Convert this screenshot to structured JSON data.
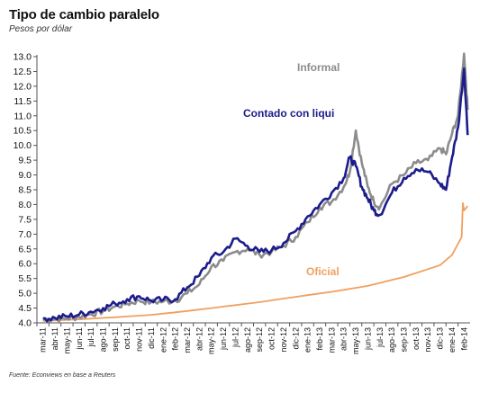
{
  "header": {
    "title": "Tipo de cambio paralelo",
    "subtitle": "Pesos por dólar"
  },
  "footer": {
    "source": "Fuente: Econviews en base a Reuters"
  },
  "colors": {
    "informal": "#8c8c8c",
    "contado": "#1c1c8c",
    "oficial": "#f0a060",
    "axis": "#555555",
    "grid": "#dddddd"
  },
  "chart_data": {
    "type": "line",
    "title": "Tipo de cambio paralelo",
    "subtitle": "Pesos por dólar",
    "xlabel": "",
    "ylabel": "",
    "ylim": [
      4.0,
      13.0
    ],
    "yticks": [
      "4.0",
      "4.5",
      "5.0",
      "5.5",
      "6.0",
      "6.5",
      "7.0",
      "7.5",
      "8.0",
      "8.5",
      "9.0",
      "9.5",
      "10.0",
      "10.5",
      "11.0",
      "11.5",
      "12.0",
      "12.5",
      "13.0"
    ],
    "categories": [
      "mar-11",
      "abr-11",
      "may-11",
      "jun-11",
      "jul-11",
      "ago-11",
      "sep-11",
      "oct-11",
      "nov-11",
      "dic-11",
      "ene-12",
      "feb-12",
      "mar-12",
      "abr-12",
      "may-12",
      "jun-12",
      "jul-12",
      "ago-12",
      "sep-12",
      "oct-12",
      "nov-12",
      "dic-12",
      "ene-13",
      "feb-13",
      "mar-13",
      "abr-13",
      "may-13",
      "jun-13",
      "jul-13",
      "ago-13",
      "sep-13",
      "oct-13",
      "nov-13",
      "dic-13",
      "ene-14",
      "feb-14"
    ],
    "grid": false,
    "annotations": [
      {
        "text": "Informal",
        "series": "Informal"
      },
      {
        "text": "Contado con liqui",
        "series": "Contado con liqui"
      },
      {
        "text": "Oficial",
        "series": "Oficial"
      }
    ],
    "series": [
      {
        "name": "Informal",
        "x": [
          0,
          1,
          2,
          3,
          4,
          5,
          6,
          7,
          8,
          9,
          10,
          11,
          12,
          13,
          14,
          15,
          16,
          17,
          18,
          19,
          20,
          21,
          22,
          23,
          24,
          25,
          25.5,
          26,
          26.5,
          27,
          27.5,
          28,
          29,
          30,
          31,
          32,
          33,
          33.5,
          34,
          34.5,
          35,
          35.3
        ],
        "values": [
          4.12,
          4.13,
          4.15,
          4.2,
          4.3,
          4.4,
          4.55,
          4.65,
          4.75,
          4.7,
          4.72,
          4.75,
          5.0,
          5.3,
          5.9,
          6.1,
          6.4,
          6.5,
          6.3,
          6.4,
          6.6,
          6.9,
          7.4,
          7.9,
          8.1,
          8.6,
          9.1,
          10.5,
          9.4,
          8.6,
          8.1,
          7.9,
          8.7,
          9.0,
          9.4,
          9.5,
          9.9,
          9.7,
          10.4,
          11.0,
          13.1,
          11.2
        ]
      },
      {
        "name": "Contado con liqui",
        "x": [
          0,
          1,
          2,
          3,
          4,
          5,
          6,
          7,
          8,
          9,
          10,
          11,
          12,
          13,
          14,
          15,
          16,
          17,
          18,
          19,
          20,
          21,
          22,
          23,
          24,
          25,
          25.5,
          26,
          26.5,
          27,
          27.5,
          28,
          29,
          30,
          31,
          32,
          33,
          33.5,
          34,
          34.5,
          35,
          35.3
        ],
        "values": [
          4.15,
          4.17,
          4.22,
          4.28,
          4.38,
          4.5,
          4.65,
          4.8,
          4.9,
          4.75,
          4.78,
          4.8,
          5.2,
          5.6,
          6.2,
          6.4,
          6.85,
          6.6,
          6.4,
          6.45,
          6.7,
          7.1,
          7.6,
          8.0,
          8.4,
          8.9,
          9.6,
          9.3,
          8.6,
          8.2,
          7.8,
          7.65,
          8.4,
          8.9,
          9.2,
          9.1,
          8.7,
          8.5,
          9.6,
          10.6,
          12.6,
          10.35
        ]
      },
      {
        "name": "Oficial",
        "x": [
          0,
          3,
          6,
          9,
          12,
          15,
          18,
          21,
          24,
          27,
          30,
          33,
          34,
          34.8,
          34.9,
          35,
          35.3
        ],
        "values": [
          4.06,
          4.12,
          4.19,
          4.27,
          4.4,
          4.55,
          4.7,
          4.88,
          5.05,
          5.25,
          5.55,
          5.95,
          6.3,
          6.9,
          8.05,
          7.8,
          7.95
        ]
      }
    ]
  }
}
